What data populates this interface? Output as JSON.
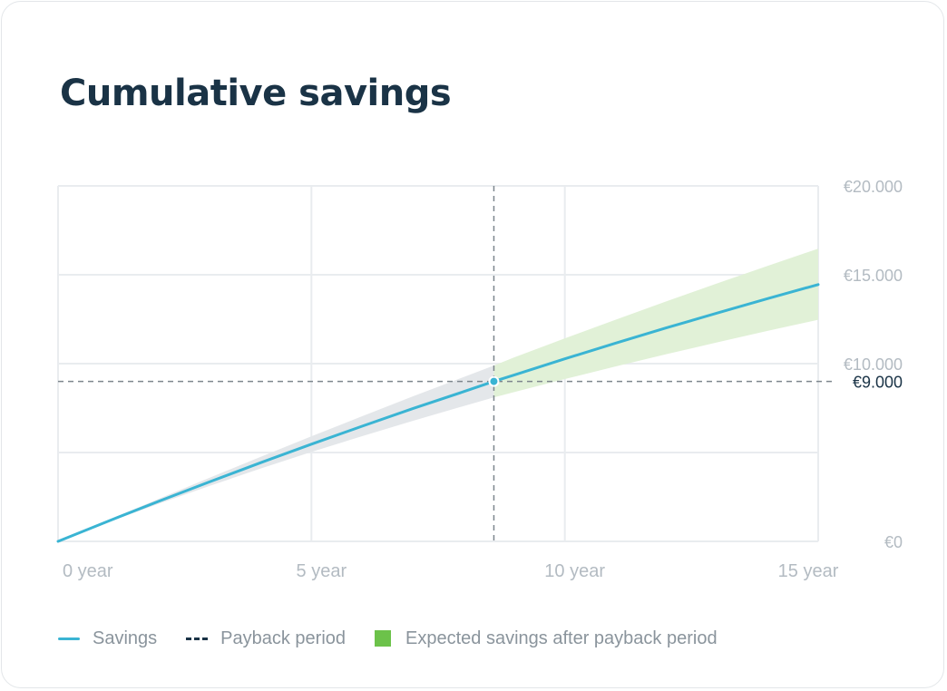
{
  "title": "Cumulative savings",
  "colors": {
    "savings_line": "#3ab4d3",
    "payback_line": "#1a3346",
    "band_before": "#e4e7ea",
    "band_after": "#e1f1d7",
    "legend_after": "#6cc24a",
    "grid": "#e9ecef",
    "axis_text": "#b3bbc2",
    "highlight_text": "#1a3346"
  },
  "legend": {
    "savings": "Savings",
    "payback": "Payback period",
    "expected": "Expected savings after payback period"
  },
  "chart_data": {
    "type": "line",
    "x": [
      0,
      1,
      2,
      3,
      4,
      5,
      6,
      7,
      8,
      8.6,
      9,
      10,
      11,
      12,
      13,
      14,
      15
    ],
    "series": [
      {
        "name": "Savings",
        "values": [
          0,
          1150,
          2270,
          3360,
          4430,
          5470,
          6480,
          7470,
          8420,
          9000,
          9360,
          10270,
          11150,
          12010,
          12840,
          13660,
          14450
        ]
      }
    ],
    "band": {
      "lower": [
        0,
        1090,
        2130,
        3130,
        4100,
        5030,
        5920,
        6780,
        7610,
        8100,
        8400,
        9130,
        9840,
        10530,
        11190,
        11840,
        12470
      ],
      "upper": [
        0,
        1210,
        2410,
        3590,
        4760,
        5910,
        7040,
        8160,
        9240,
        9890,
        10350,
        11420,
        12470,
        13500,
        14510,
        15500,
        16470
      ]
    },
    "payback": {
      "x": 8.6,
      "y": 9000,
      "label": "€9.000"
    },
    "x_ticks": [
      {
        "value": 0,
        "label": "0 year"
      },
      {
        "value": 5,
        "label": "5 year"
      },
      {
        "value": 10,
        "label": "10 year"
      },
      {
        "value": 15,
        "label": "15 year"
      }
    ],
    "y_ticks": [
      {
        "value": 0,
        "label": "€0"
      },
      {
        "value": 5000,
        "label": ""
      },
      {
        "value": 10000,
        "label": "€10.000"
      },
      {
        "value": 15000,
        "label": "€15.000"
      },
      {
        "value": 20000,
        "label": "€20.000"
      }
    ],
    "xlim": [
      0,
      15
    ],
    "ylim": [
      0,
      20000
    ],
    "grid": true,
    "legend_position": "bottom"
  }
}
